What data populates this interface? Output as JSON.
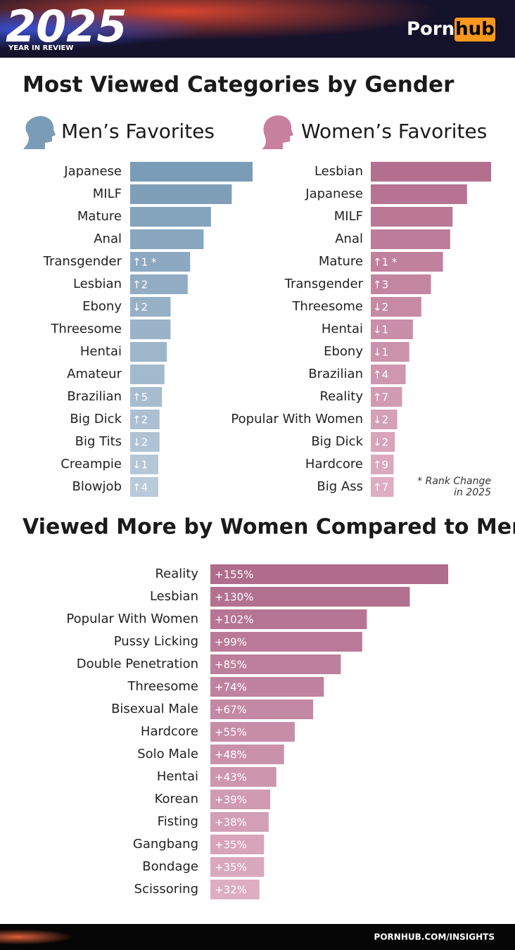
{
  "header": {
    "year": "2025",
    "subtitle": "YEAR IN REVIEW",
    "brand": [
      "Porn",
      "hub"
    ]
  },
  "heading": "Most Viewed Categories by Gender",
  "footer": "PORNHUB.COM/INSIGHTS",
  "chart_data": [
    {
      "type": "bar",
      "title": "Men’s Favorites",
      "color": "#7b9cb7",
      "color_end": "#b9cad9",
      "categories": [
        "Japanese",
        "MILF",
        "Mature",
        "Anal",
        "Transgender",
        "Lesbian",
        "Ebony",
        "Threesome",
        "Hentai",
        "Amateur",
        "Brazilian",
        "Big Dick",
        "Big Tits",
        "Creampie",
        "Blowjob"
      ],
      "values": [
        100,
        83,
        66,
        60,
        49,
        47,
        33,
        33,
        30,
        28,
        26,
        24,
        24,
        23,
        23
      ],
      "rank_changes": [
        null,
        null,
        null,
        null,
        "↑1 *",
        "↑2",
        "↓2",
        null,
        null,
        null,
        "↑5",
        "↑2",
        "↓2",
        "↓1",
        "↑4"
      ]
    },
    {
      "type": "bar",
      "title": "Women’s Favorites",
      "color": "#b46f8e",
      "color_end": "#ddadc1",
      "categories": [
        "Lesbian",
        "Japanese",
        "MILF",
        "Anal",
        "Mature",
        "Transgender",
        "Threesome",
        "Hentai",
        "Ebony",
        "Brazilian",
        "Reality",
        "Popular With Women",
        "Big Dick",
        "Hardcore",
        "Big Ass"
      ],
      "values": [
        100,
        80,
        68,
        66,
        60,
        50,
        42,
        35,
        32,
        29,
        26,
        22,
        20,
        19,
        19
      ],
      "rank_changes": [
        null,
        null,
        null,
        null,
        "↑1 *",
        "↑3",
        "↓2",
        "↓1",
        "↓1",
        "↑4",
        "↑7",
        "↓2",
        "↓2",
        "↑9",
        "↑7"
      ],
      "note": [
        "* Rank Change",
        "in 2025"
      ]
    },
    {
      "type": "bar",
      "title": "Viewed More by Women Compared to Men",
      "color": "#b06c8c",
      "color_end": "#ddadc1",
      "categories": [
        "Reality",
        "Lesbian",
        "Popular With Women",
        "Pussy Licking",
        "Double Penetration",
        "Threesome",
        "Bisexual Male",
        "Hardcore",
        "Solo Male",
        "Hentai",
        "Korean",
        "Fisting",
        "Gangbang",
        "Bondage",
        "Scissoring"
      ],
      "values": [
        155,
        130,
        102,
        99,
        85,
        74,
        67,
        55,
        48,
        43,
        39,
        38,
        35,
        35,
        32
      ],
      "value_labels": [
        "+155%",
        "+130%",
        "+102%",
        "+99%",
        "+85%",
        "+74%",
        "+67%",
        "+55%",
        "+48%",
        "+43%",
        "+39%",
        "+38%",
        "+35%",
        "+35%",
        "+32%"
      ]
    }
  ]
}
